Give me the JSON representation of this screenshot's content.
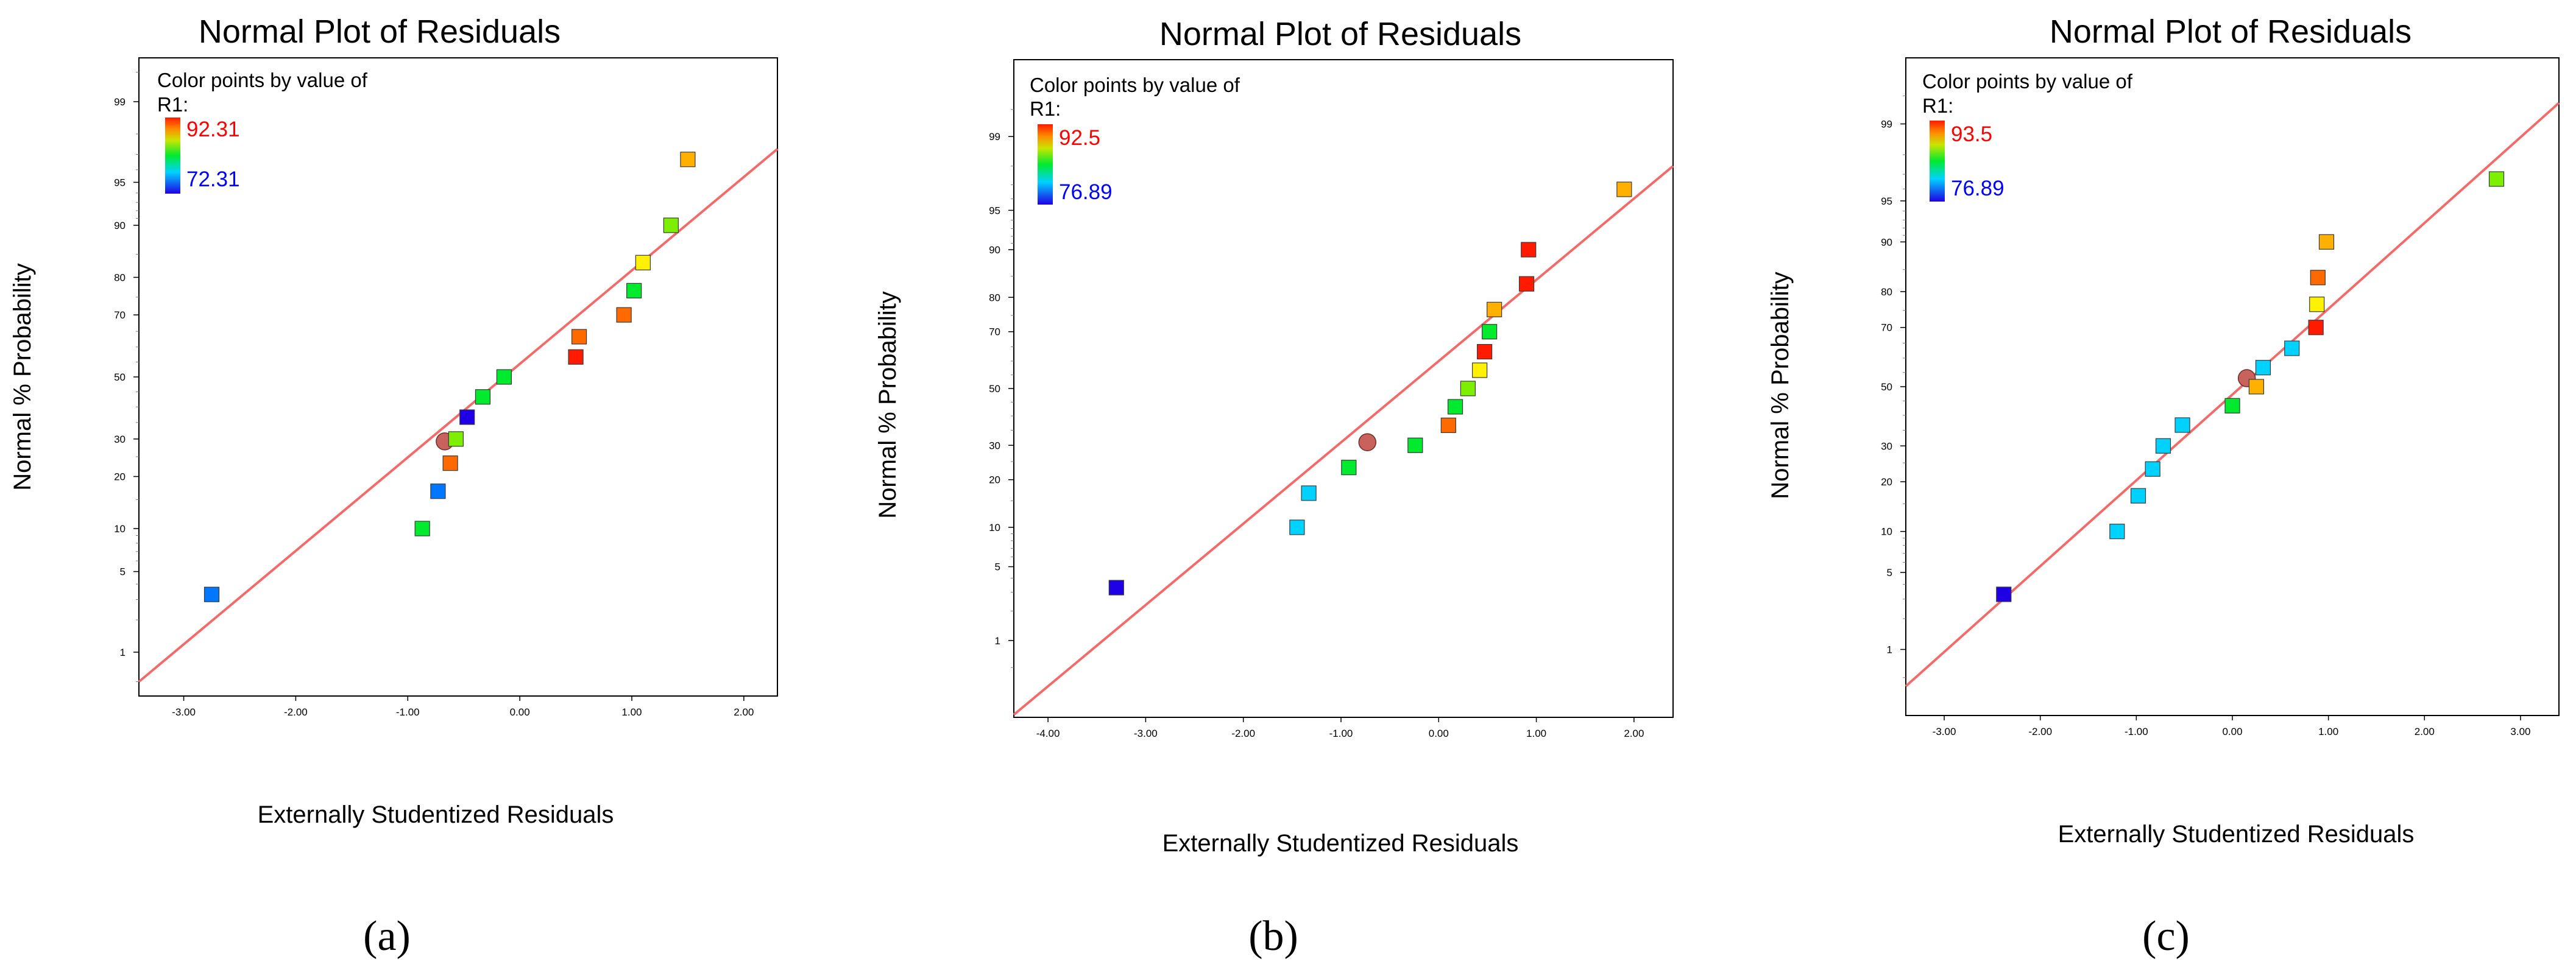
{
  "figure": {
    "captions": [
      "(a)",
      "(b)",
      "(c)"
    ]
  },
  "colors": {
    "fit_line": "#f26b6b",
    "design_point": "#c8625c",
    "scale": [
      "#1f00e6",
      "#0077ff",
      "#00d2ff",
      "#00ea2e",
      "#7cf000",
      "#fff200",
      "#ffb000",
      "#ff6a00",
      "#ff1a00"
    ]
  },
  "chart_data": [
    {
      "type": "scatter",
      "title": "Normal Plot of Residuals",
      "xlabel": "Externally Studentized Residuals",
      "ylabel": "Normal % Probability",
      "legend_title": "Color points by value of",
      "legend_var": "R1:",
      "legend_high": "92.31",
      "legend_low": "72.31",
      "xlim": [
        -3.4,
        2.3
      ],
      "ylim_pct": [
        0.35,
        99.65
      ],
      "xticks": [
        "-3.00",
        "-2.00",
        "-1.00",
        "0.00",
        "1.00",
        "2.00"
      ],
      "xtick_values": [
        -3,
        -2,
        -1,
        0,
        1,
        2
      ],
      "yticks": [
        "1",
        "5",
        "10",
        "20",
        "30",
        "50",
        "70",
        "80",
        "90",
        "95",
        "99"
      ],
      "ytick_values": [
        1,
        5,
        10,
        20,
        30,
        50,
        70,
        80,
        90,
        95,
        99
      ],
      "fit_line": {
        "x": [
          -3.4,
          2.3
        ],
        "p": [
          0.5,
          97.3
        ]
      },
      "design_point": {
        "x": -0.67,
        "p": 29.3
      },
      "points": [
        {
          "x": -2.75,
          "p": 3.3,
          "color": "#0077ff"
        },
        {
          "x": -0.87,
          "p": 10.0,
          "color": "#00ea2e"
        },
        {
          "x": -0.73,
          "p": 16.7,
          "color": "#0077ff"
        },
        {
          "x": -0.62,
          "p": 23.3,
          "color": "#ff6a00"
        },
        {
          "x": -0.57,
          "p": 30.0,
          "color": "#7cf000"
        },
        {
          "x": -0.47,
          "p": 36.7,
          "color": "#1f00e6"
        },
        {
          "x": -0.33,
          "p": 43.3,
          "color": "#00ea2e"
        },
        {
          "x": -0.14,
          "p": 50.0,
          "color": "#00ea2e"
        },
        {
          "x": 0.5,
          "p": 56.7,
          "color": "#ff1a00"
        },
        {
          "x": 0.53,
          "p": 63.3,
          "color": "#ff6a00"
        },
        {
          "x": 0.93,
          "p": 70.0,
          "color": "#ff6a00"
        },
        {
          "x": 1.02,
          "p": 76.7,
          "color": "#00ea2e"
        },
        {
          "x": 1.1,
          "p": 83.3,
          "color": "#fff200"
        },
        {
          "x": 1.35,
          "p": 90.0,
          "color": "#7cf000"
        },
        {
          "x": 1.5,
          "p": 96.7,
          "color": "#ffb000"
        }
      ]
    },
    {
      "type": "scatter",
      "title": "Normal Plot of Residuals",
      "xlabel": "Externally Studentized Residuals",
      "ylabel": "Normal % Probability",
      "legend_title": "Color points by value of",
      "legend_var": "R1:",
      "legend_high": "92.5",
      "legend_low": "76.89",
      "xlim": [
        -4.35,
        2.4
      ],
      "ylim_pct": [
        0.12,
        99.88
      ],
      "xticks": [
        "-4.00",
        "-3.00",
        "-2.00",
        "-1.00",
        "0.00",
        "1.00",
        "2.00"
      ],
      "xtick_values": [
        -4,
        -3,
        -2,
        -1,
        0,
        1,
        2
      ],
      "yticks": [
        "1",
        "5",
        "10",
        "20",
        "30",
        "50",
        "70",
        "80",
        "90",
        "95",
        "99"
      ],
      "ytick_values": [
        1,
        5,
        10,
        20,
        30,
        50,
        70,
        80,
        90,
        95,
        99
      ],
      "fit_line": {
        "x": [
          -4.35,
          2.4
        ],
        "p": [
          0.13,
          98.0
        ]
      },
      "design_point": {
        "x": -0.73,
        "p": 31.0
      },
      "points": [
        {
          "x": -3.3,
          "p": 3.3,
          "color": "#1f00e6"
        },
        {
          "x": -1.45,
          "p": 10.0,
          "color": "#00d2ff"
        },
        {
          "x": -1.33,
          "p": 16.7,
          "color": "#00d2ff"
        },
        {
          "x": -0.92,
          "p": 23.3,
          "color": "#00ea2e"
        },
        {
          "x": -0.24,
          "p": 30.0,
          "color": "#00ea2e"
        },
        {
          "x": 0.1,
          "p": 36.7,
          "color": "#ff6a00"
        },
        {
          "x": 0.17,
          "p": 43.3,
          "color": "#00ea2e"
        },
        {
          "x": 0.3,
          "p": 50.0,
          "color": "#7cf000"
        },
        {
          "x": 0.42,
          "p": 56.7,
          "color": "#fff200"
        },
        {
          "x": 0.47,
          "p": 63.3,
          "color": "#ff1a00"
        },
        {
          "x": 0.52,
          "p": 70.0,
          "color": "#00ea2e"
        },
        {
          "x": 0.57,
          "p": 76.7,
          "color": "#ffb000"
        },
        {
          "x": 0.9,
          "p": 83.3,
          "color": "#ff1a00"
        },
        {
          "x": 0.92,
          "p": 90.0,
          "color": "#ff1a00"
        },
        {
          "x": 1.9,
          "p": 96.7,
          "color": "#ffb000"
        }
      ]
    },
    {
      "type": "scatter",
      "title": "Normal Plot of Residuals",
      "xlabel": "Externally Studentized Residuals",
      "ylabel": "Normal % Probability",
      "legend_title": "Color points by value of",
      "legend_var": "R1:",
      "legend_high": "93.5",
      "legend_low": "76.89",
      "xlim": [
        -3.4,
        3.4
      ],
      "ylim_pct": [
        0.18,
        99.82
      ],
      "xticks": [
        "-3.00",
        "-2.00",
        "-1.00",
        "0.00",
        "1.00",
        "2.00",
        "3.00"
      ],
      "xtick_values": [
        -3,
        -2,
        -1,
        0,
        1,
        2,
        3
      ],
      "yticks": [
        "1",
        "5",
        "10",
        "20",
        "30",
        "50",
        "70",
        "80",
        "90",
        "95",
        "99"
      ],
      "ytick_values": [
        1,
        5,
        10,
        20,
        30,
        50,
        70,
        80,
        90,
        95,
        99
      ],
      "fit_line": {
        "x": [
          -3.4,
          3.4
        ],
        "p": [
          0.4,
          99.4
        ]
      },
      "design_point": {
        "x": 0.15,
        "p": 53.0
      },
      "points": [
        {
          "x": -2.38,
          "p": 3.3,
          "color": "#1f00e6"
        },
        {
          "x": -1.2,
          "p": 10.0,
          "color": "#00d2ff"
        },
        {
          "x": -0.98,
          "p": 16.7,
          "color": "#00d2ff"
        },
        {
          "x": -0.83,
          "p": 23.3,
          "color": "#00d2ff"
        },
        {
          "x": -0.72,
          "p": 30.0,
          "color": "#00d2ff"
        },
        {
          "x": -0.52,
          "p": 36.7,
          "color": "#00d2ff"
        },
        {
          "x": 0.0,
          "p": 43.3,
          "color": "#00ea2e"
        },
        {
          "x": 0.25,
          "p": 50.0,
          "color": "#ffb000"
        },
        {
          "x": 0.32,
          "p": 56.7,
          "color": "#00d2ff"
        },
        {
          "x": 0.62,
          "p": 63.3,
          "color": "#00d2ff"
        },
        {
          "x": 0.87,
          "p": 70.0,
          "color": "#ff1a00"
        },
        {
          "x": 0.88,
          "p": 76.7,
          "color": "#fff200"
        },
        {
          "x": 0.89,
          "p": 83.3,
          "color": "#ff6a00"
        },
        {
          "x": 0.98,
          "p": 90.0,
          "color": "#ffb000"
        },
        {
          "x": 2.75,
          "p": 96.7,
          "color": "#7cf000"
        }
      ]
    }
  ]
}
